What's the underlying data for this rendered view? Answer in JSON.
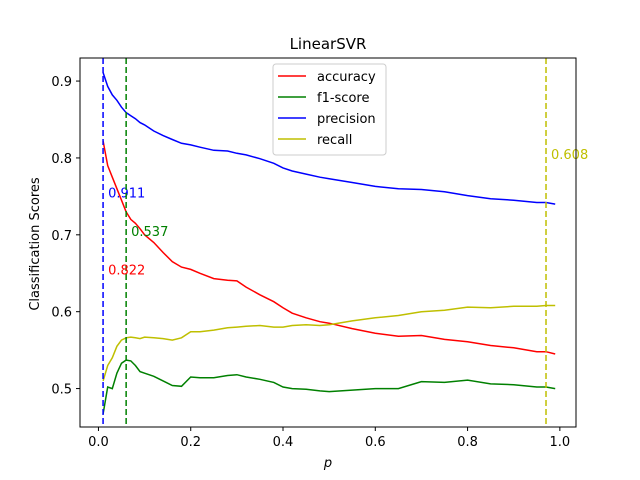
{
  "chart_data": {
    "type": "line",
    "title": "LinearSVR",
    "xlabel": "p",
    "ylabel": "Classification Scores",
    "xlim": [
      -0.04,
      1.035
    ],
    "ylim": [
      0.45,
      0.93
    ],
    "xticks": [
      0.0,
      0.2,
      0.4,
      0.6,
      0.8,
      1.0
    ],
    "xtick_labels": [
      "0.0",
      "0.2",
      "0.4",
      "0.6",
      "0.8",
      "1.0"
    ],
    "yticks": [
      0.5,
      0.6,
      0.7,
      0.8,
      0.9
    ],
    "ytick_labels": [
      "0.5",
      "0.6",
      "0.7",
      "0.8",
      "0.9"
    ],
    "grid": false,
    "legend_position": "top-center",
    "series": [
      {
        "name": "accuracy",
        "color": "#ff0000",
        "x": [
          0.01,
          0.02,
          0.03,
          0.04,
          0.05,
          0.06,
          0.07,
          0.08,
          0.09,
          0.1,
          0.12,
          0.14,
          0.16,
          0.18,
          0.2,
          0.22,
          0.25,
          0.28,
          0.3,
          0.32,
          0.35,
          0.38,
          0.4,
          0.42,
          0.45,
          0.48,
          0.5,
          0.55,
          0.6,
          0.65,
          0.7,
          0.75,
          0.8,
          0.85,
          0.9,
          0.95,
          0.97,
          0.99
        ],
        "y": [
          0.822,
          0.79,
          0.775,
          0.76,
          0.745,
          0.73,
          0.72,
          0.715,
          0.708,
          0.7,
          0.69,
          0.677,
          0.665,
          0.658,
          0.655,
          0.65,
          0.643,
          0.641,
          0.64,
          0.632,
          0.622,
          0.613,
          0.605,
          0.598,
          0.592,
          0.587,
          0.585,
          0.578,
          0.572,
          0.568,
          0.569,
          0.564,
          0.561,
          0.556,
          0.553,
          0.548,
          0.548,
          0.545
        ]
      },
      {
        "name": "f1-score",
        "color": "#008000",
        "x": [
          0.01,
          0.02,
          0.03,
          0.04,
          0.05,
          0.06,
          0.07,
          0.08,
          0.09,
          0.1,
          0.12,
          0.14,
          0.16,
          0.18,
          0.2,
          0.22,
          0.25,
          0.28,
          0.3,
          0.32,
          0.35,
          0.38,
          0.4,
          0.42,
          0.45,
          0.48,
          0.5,
          0.55,
          0.6,
          0.65,
          0.7,
          0.75,
          0.8,
          0.85,
          0.9,
          0.95,
          0.97,
          0.99
        ],
        "y": [
          0.467,
          0.502,
          0.5,
          0.52,
          0.533,
          0.537,
          0.536,
          0.53,
          0.522,
          0.52,
          0.516,
          0.51,
          0.504,
          0.503,
          0.515,
          0.514,
          0.514,
          0.517,
          0.518,
          0.515,
          0.512,
          0.508,
          0.502,
          0.5,
          0.499,
          0.497,
          0.496,
          0.498,
          0.5,
          0.5,
          0.509,
          0.508,
          0.511,
          0.506,
          0.505,
          0.502,
          0.502,
          0.5
        ]
      },
      {
        "name": "precision",
        "color": "#0000ff",
        "x": [
          0.01,
          0.02,
          0.03,
          0.04,
          0.05,
          0.06,
          0.07,
          0.08,
          0.09,
          0.1,
          0.12,
          0.14,
          0.16,
          0.18,
          0.2,
          0.22,
          0.25,
          0.28,
          0.3,
          0.32,
          0.35,
          0.38,
          0.4,
          0.42,
          0.45,
          0.48,
          0.5,
          0.55,
          0.6,
          0.65,
          0.7,
          0.75,
          0.8,
          0.85,
          0.9,
          0.95,
          0.97,
          0.99
        ],
        "y": [
          0.911,
          0.893,
          0.882,
          0.875,
          0.866,
          0.859,
          0.855,
          0.851,
          0.846,
          0.843,
          0.835,
          0.829,
          0.824,
          0.819,
          0.817,
          0.814,
          0.81,
          0.809,
          0.806,
          0.804,
          0.799,
          0.793,
          0.787,
          0.783,
          0.779,
          0.775,
          0.773,
          0.768,
          0.763,
          0.76,
          0.759,
          0.756,
          0.751,
          0.747,
          0.745,
          0.742,
          0.742,
          0.74
        ]
      },
      {
        "name": "recall",
        "color": "#bfbf00",
        "x": [
          0.01,
          0.02,
          0.03,
          0.04,
          0.05,
          0.06,
          0.07,
          0.08,
          0.09,
          0.1,
          0.12,
          0.14,
          0.16,
          0.18,
          0.2,
          0.22,
          0.25,
          0.28,
          0.3,
          0.32,
          0.35,
          0.38,
          0.4,
          0.42,
          0.45,
          0.48,
          0.5,
          0.55,
          0.6,
          0.65,
          0.7,
          0.75,
          0.8,
          0.85,
          0.9,
          0.95,
          0.97,
          0.99
        ],
        "y": [
          0.51,
          0.53,
          0.54,
          0.555,
          0.563,
          0.566,
          0.567,
          0.566,
          0.565,
          0.567,
          0.566,
          0.565,
          0.563,
          0.566,
          0.574,
          0.574,
          0.576,
          0.579,
          0.58,
          0.581,
          0.582,
          0.58,
          0.58,
          0.582,
          0.583,
          0.582,
          0.583,
          0.588,
          0.592,
          0.595,
          0.6,
          0.602,
          0.606,
          0.605,
          0.607,
          0.607,
          0.608,
          0.608
        ]
      }
    ],
    "vlines": [
      {
        "x": 0.01,
        "color": "#0000ff",
        "label": "0.911",
        "label_y": 0.755
      },
      {
        "x": 0.06,
        "color": "#008000",
        "label": "0.537",
        "label_y": 0.705
      },
      {
        "x": 0.97,
        "color": "#bfbf00",
        "label": "0.608",
        "label_y": 0.805
      }
    ],
    "annotations": [
      {
        "text": "0.822",
        "x": 0.01,
        "y": 0.655,
        "color": "#ff0000"
      }
    ]
  }
}
